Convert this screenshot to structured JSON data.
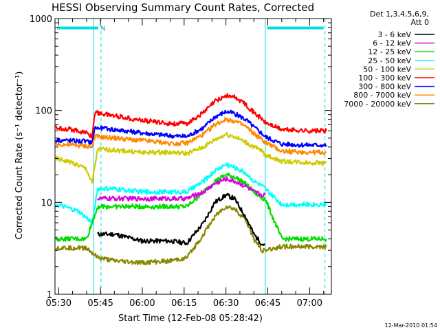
{
  "chart_data": {
    "type": "line",
    "title": "HESSI Observing Summary Count Rates, Corrected",
    "xlabel": "Start Time (12-Feb-08 05:28:42)",
    "ylabel": "Corrected Count Rate (s⁻¹ detector⁻¹)",
    "yscale": "log",
    "ylim": [
      1,
      1000
    ],
    "xlim_minutes": [
      -1.3,
      97.8
    ],
    "x_ticks": [
      {
        "label": "05:30",
        "t": 0
      },
      {
        "label": "05:45",
        "t": 15
      },
      {
        "label": "06:00",
        "t": 30
      },
      {
        "label": "06:15",
        "t": 45
      },
      {
        "label": "06:30",
        "t": 60
      },
      {
        "label": "06:45",
        "t": 75
      },
      {
        "label": "07:00",
        "t": 90
      }
    ],
    "y_ticks": [
      {
        "label": "1",
        "value": 1
      },
      {
        "label": "10",
        "value": 10
      },
      {
        "label": "100",
        "value": 100
      },
      {
        "label": "1000",
        "value": 1000
      }
    ],
    "legend_header": [
      "Det 1,3,4,5,6,9,",
      "Att 0"
    ],
    "legend_position": "right",
    "night_markers_t": [
      12.6,
      74.1
    ],
    "dashed_markers_t": [
      15.2,
      95.5
    ],
    "flag_segments": [
      {
        "label": "N",
        "t_start": -0.5,
        "t_end": 14.2,
        "value": 790
      },
      {
        "label": "",
        "t_start": 74.8,
        "t_end": 95.0,
        "value": 790
      }
    ],
    "series": [
      {
        "name": "3 - 6 keV",
        "color": "#000000",
        "x": [
          14,
          20,
          30,
          40,
          46,
          52,
          56,
          60,
          63,
          67,
          70,
          73,
          74
        ],
        "y": [
          4.5,
          4.5,
          3.8,
          3.8,
          3.6,
          6,
          10,
          12,
          11,
          7,
          4.5,
          3.5,
          3.5
        ]
      },
      {
        "name": "6 - 12 keV",
        "color": "#dd00dd",
        "x": [
          14,
          20,
          30,
          40,
          46,
          52,
          56,
          60,
          63,
          67,
          70,
          73,
          74
        ],
        "y": [
          11,
          11,
          11,
          11,
          11,
          13,
          16,
          18,
          17,
          15,
          13,
          12,
          12
        ]
      },
      {
        "name": "12 - 25 keV",
        "color": "#00dd00",
        "x": [
          -1,
          10,
          14,
          20,
          30,
          40,
          46,
          52,
          56,
          60,
          63,
          67,
          70,
          73,
          74,
          80,
          90,
          96
        ],
        "y": [
          4,
          4,
          9,
          9,
          9,
          9,
          9,
          13,
          17,
          20,
          19,
          16,
          13,
          11,
          11,
          4,
          4,
          4
        ]
      },
      {
        "name": "25 - 50 keV",
        "color": "#00ffff",
        "x": [
          -1,
          7,
          12,
          14,
          20,
          30,
          40,
          46,
          52,
          56,
          60,
          63,
          67,
          70,
          73,
          74,
          80,
          90,
          96
        ],
        "y": [
          9.5,
          8,
          6,
          14,
          14,
          13,
          13,
          13,
          17,
          22,
          26,
          24,
          21,
          17,
          15,
          14,
          9.5,
          9.5,
          9.5
        ]
      },
      {
        "name": "50 - 100 keV",
        "color": "#cccc00",
        "x": [
          -1,
          5,
          10,
          12,
          14,
          20,
          30,
          40,
          46,
          52,
          56,
          60,
          63,
          67,
          70,
          73,
          74,
          80,
          90,
          96
        ],
        "y": [
          30,
          27,
          23,
          16,
          38,
          37,
          35,
          35,
          34,
          40,
          48,
          55,
          52,
          45,
          40,
          36,
          33,
          28,
          27,
          27
        ]
      },
      {
        "name": "100 - 300 keV",
        "color": "#ff0000",
        "x": [
          -1,
          5,
          10,
          12,
          13,
          20,
          30,
          40,
          46,
          52,
          56,
          60,
          63,
          67,
          70,
          73,
          74,
          80,
          90,
          96
        ],
        "y": [
          65,
          62,
          57,
          52,
          95,
          88,
          78,
          72,
          72,
          95,
          125,
          145,
          140,
          118,
          95,
          80,
          74,
          62,
          60,
          60
        ]
      },
      {
        "name": "300 - 800 keV",
        "color": "#0000ff",
        "x": [
          -1,
          5,
          10,
          12,
          13,
          20,
          30,
          40,
          46,
          52,
          56,
          60,
          63,
          67,
          70,
          73,
          74,
          80,
          90,
          96
        ],
        "y": [
          48,
          47,
          46,
          45,
          65,
          62,
          57,
          53,
          52,
          65,
          85,
          97,
          93,
          80,
          66,
          56,
          52,
          43,
          42,
          42
        ]
      },
      {
        "name": "800 - 7000 keV",
        "color": "#ff8800",
        "x": [
          -1,
          5,
          10,
          12,
          13,
          20,
          30,
          40,
          46,
          52,
          56,
          60,
          63,
          67,
          70,
          73,
          74,
          80,
          90,
          96
        ],
        "y": [
          43,
          42,
          41,
          40,
          52,
          50,
          47,
          44,
          44,
          55,
          70,
          80,
          77,
          67,
          56,
          48,
          45,
          36,
          35,
          35
        ]
      },
      {
        "name": "7000 - 20000 keV",
        "color": "#888800",
        "x": [
          -1,
          10,
          14,
          20,
          30,
          40,
          46,
          52,
          56,
          60,
          63,
          67,
          70,
          73,
          74,
          80,
          90,
          96
        ],
        "y": [
          3.2,
          3.2,
          2.5,
          2.3,
          2.2,
          2.3,
          2.5,
          4.5,
          7,
          9,
          8.5,
          6.5,
          4,
          3,
          3,
          3.3,
          3.3,
          3.3
        ]
      }
    ]
  },
  "timestamp": "12-Mar-2010 01:54"
}
